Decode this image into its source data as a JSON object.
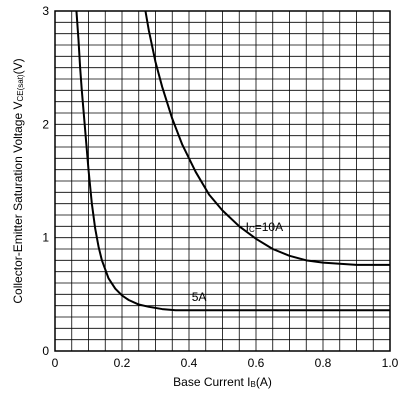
{
  "chart_data": {
    "type": "line",
    "title": "",
    "xlabel": {
      "text": "Base Current I",
      "sub": "B",
      "suffix": "(A)"
    },
    "ylabel": {
      "text": "Collector-Emitter Saturation Voltage V",
      "sub": "CE(sat)",
      "suffix": "(V)"
    },
    "xlim": [
      0,
      1.0
    ],
    "ylim": [
      0,
      3
    ],
    "grid": true,
    "x_ticks": [
      0,
      0.2,
      0.4,
      0.6,
      0.8,
      1.0
    ],
    "x_tick_labels": [
      "0",
      "0.2",
      "0.4",
      "0.6",
      "0.8",
      "1.0"
    ],
    "y_ticks": [
      0,
      1,
      2,
      3
    ],
    "y_tick_labels": [
      "0",
      "1",
      "2",
      "3"
    ],
    "series": [
      {
        "name": "IC=10A",
        "label_main": "I",
        "label_sub": "C",
        "label_suffix": "=10A",
        "x": [
          0.27,
          0.28,
          0.3,
          0.32,
          0.35,
          0.38,
          0.42,
          0.46,
          0.5,
          0.55,
          0.6,
          0.65,
          0.7,
          0.75,
          0.8,
          0.85,
          0.9,
          0.95,
          1.0
        ],
        "y": [
          3.0,
          2.83,
          2.55,
          2.33,
          2.05,
          1.82,
          1.58,
          1.38,
          1.24,
          1.1,
          0.99,
          0.9,
          0.84,
          0.8,
          0.78,
          0.77,
          0.76,
          0.76,
          0.76
        ]
      },
      {
        "name": "5A",
        "label_main": "5A",
        "label_sub": "",
        "label_suffix": "",
        "x": [
          0.064,
          0.07,
          0.075,
          0.08,
          0.09,
          0.1,
          0.11,
          0.12,
          0.13,
          0.14,
          0.16,
          0.18,
          0.2,
          0.22,
          0.25,
          0.28,
          0.32,
          0.36,
          0.4,
          0.5,
          0.6,
          0.7,
          0.8,
          0.9,
          1.0
        ],
        "y": [
          3.0,
          2.75,
          2.5,
          2.3,
          1.95,
          1.6,
          1.3,
          1.08,
          0.92,
          0.8,
          0.64,
          0.55,
          0.49,
          0.45,
          0.41,
          0.39,
          0.37,
          0.36,
          0.36,
          0.36,
          0.36,
          0.36,
          0.36,
          0.36,
          0.36
        ]
      }
    ]
  }
}
